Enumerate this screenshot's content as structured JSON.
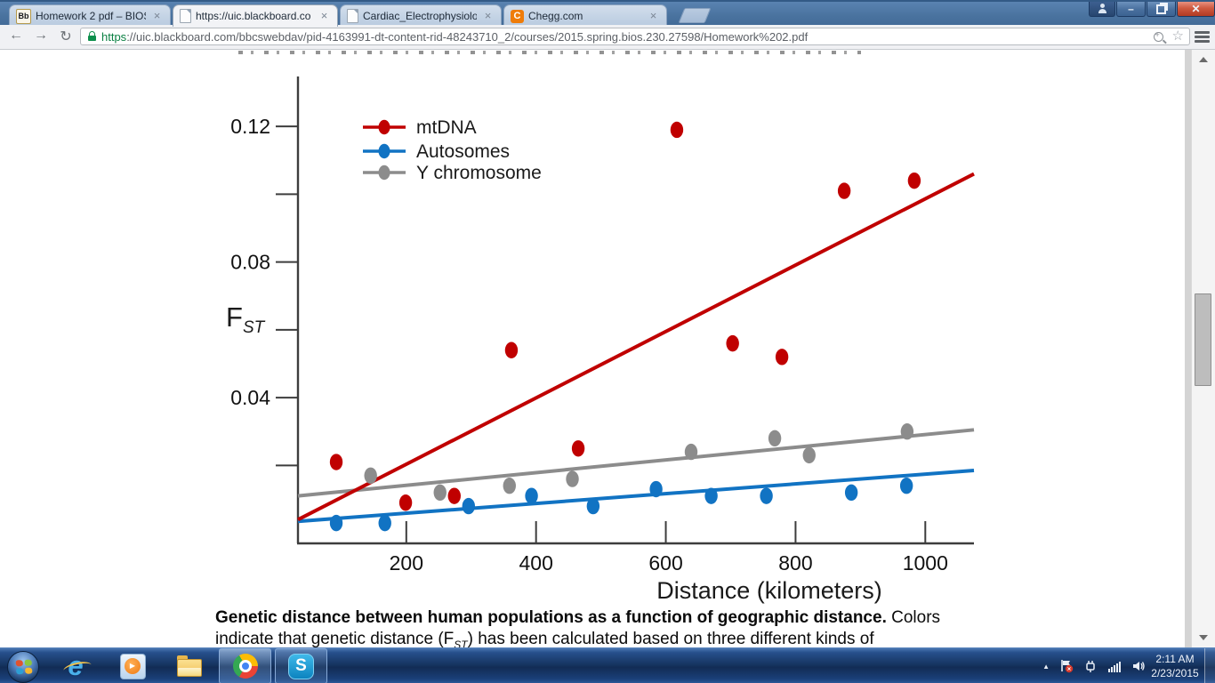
{
  "browser": {
    "tabs": [
      {
        "title": "Homework 2 pdf – BIOS 2",
        "favicon": "blackboard"
      },
      {
        "title": "https://uic.blackboard.co",
        "favicon": "document"
      },
      {
        "title": "Cardiac_Electrophysiology",
        "favicon": "document"
      },
      {
        "title": "Chegg.com",
        "favicon": "chegg"
      }
    ],
    "url_scheme": "https",
    "url_rest": "://uic.blackboard.com/bbcswebdav/pid-4163991-dt-content-rid-48243710_2/courses/2015.spring.bios.230.27598/Homework%202.pdf"
  },
  "icons": {
    "tab_close": "×",
    "back": "←",
    "forward": "→",
    "reload": "↻",
    "bookmark_star": "☆",
    "minimize": "–",
    "close": "✕",
    "blackboard_monogram": "Bb",
    "chegg_monogram": "C",
    "ie_monogram": "e",
    "skype_monogram": "S",
    "play": "▶",
    "overflow_chevron": "▲"
  },
  "chart_data": {
    "type": "scatter",
    "title": "",
    "xlabel": "Distance (kilometers)",
    "ylabel_main": "F",
    "ylabel_sub": "ST",
    "xlim": [
      33,
      1075
    ],
    "ylim": [
      -0.003,
      0.135
    ],
    "x_ticks": [
      200,
      400,
      600,
      800,
      1000
    ],
    "y_ticks": [
      0.02,
      0.04,
      0.06,
      0.08,
      0.1,
      0.12
    ],
    "y_labeled_ticks": [
      0.04,
      0.08,
      0.12
    ],
    "grid": false,
    "legend_position": "upper-left-inside",
    "series": [
      {
        "name": "Y chromosome",
        "color": "#8c8c8c",
        "points": [
          [
            145,
            0.017
          ],
          [
            252,
            0.012
          ],
          [
            359,
            0.014
          ],
          [
            456,
            0.016
          ],
          [
            639,
            0.024
          ],
          [
            768,
            0.028
          ],
          [
            821,
            0.023
          ],
          [
            972,
            0.03
          ]
        ],
        "trend_x": [
          33,
          1075
        ],
        "trend_y": [
          0.011,
          0.0305
        ]
      },
      {
        "name": "Autosomes",
        "color": "#1173c3",
        "points": [
          [
            92,
            0.003
          ],
          [
            167,
            0.003
          ],
          [
            296,
            0.008
          ],
          [
            393,
            0.011
          ],
          [
            488,
            0.008
          ],
          [
            585,
            0.013
          ],
          [
            670,
            0.011
          ],
          [
            755,
            0.011
          ],
          [
            886,
            0.012
          ],
          [
            971,
            0.014
          ]
        ],
        "trend_x": [
          33,
          1075
        ],
        "trend_y": [
          0.0035,
          0.0185
        ]
      },
      {
        "name": "mtDNA",
        "color": "#c00000",
        "points": [
          [
            92,
            0.021
          ],
          [
            199,
            0.009
          ],
          [
            274,
            0.011
          ],
          [
            362,
            0.054
          ],
          [
            465,
            0.025
          ],
          [
            617,
            0.119
          ],
          [
            703,
            0.056
          ],
          [
            779,
            0.052
          ],
          [
            875,
            0.101
          ],
          [
            983,
            0.104
          ]
        ],
        "trend_x": [
          33,
          1075
        ],
        "trend_y": [
          0.004,
          0.106
        ]
      }
    ],
    "legend_order": [
      "mtDNA",
      "Autosomes",
      "Y chromosome"
    ]
  },
  "pdf": {
    "caption_bold": "Genetic distance between human populations as a function of geographic distance.",
    "caption_regular": " Colors",
    "caption2_pre": "indicate that genetic distance (F",
    "caption2_sub": "ST",
    "caption2_post": ") has been calculated based on three different kinds of"
  },
  "taskbar": {
    "clock_time": "2:11 AM",
    "clock_date": "2/23/2015"
  }
}
